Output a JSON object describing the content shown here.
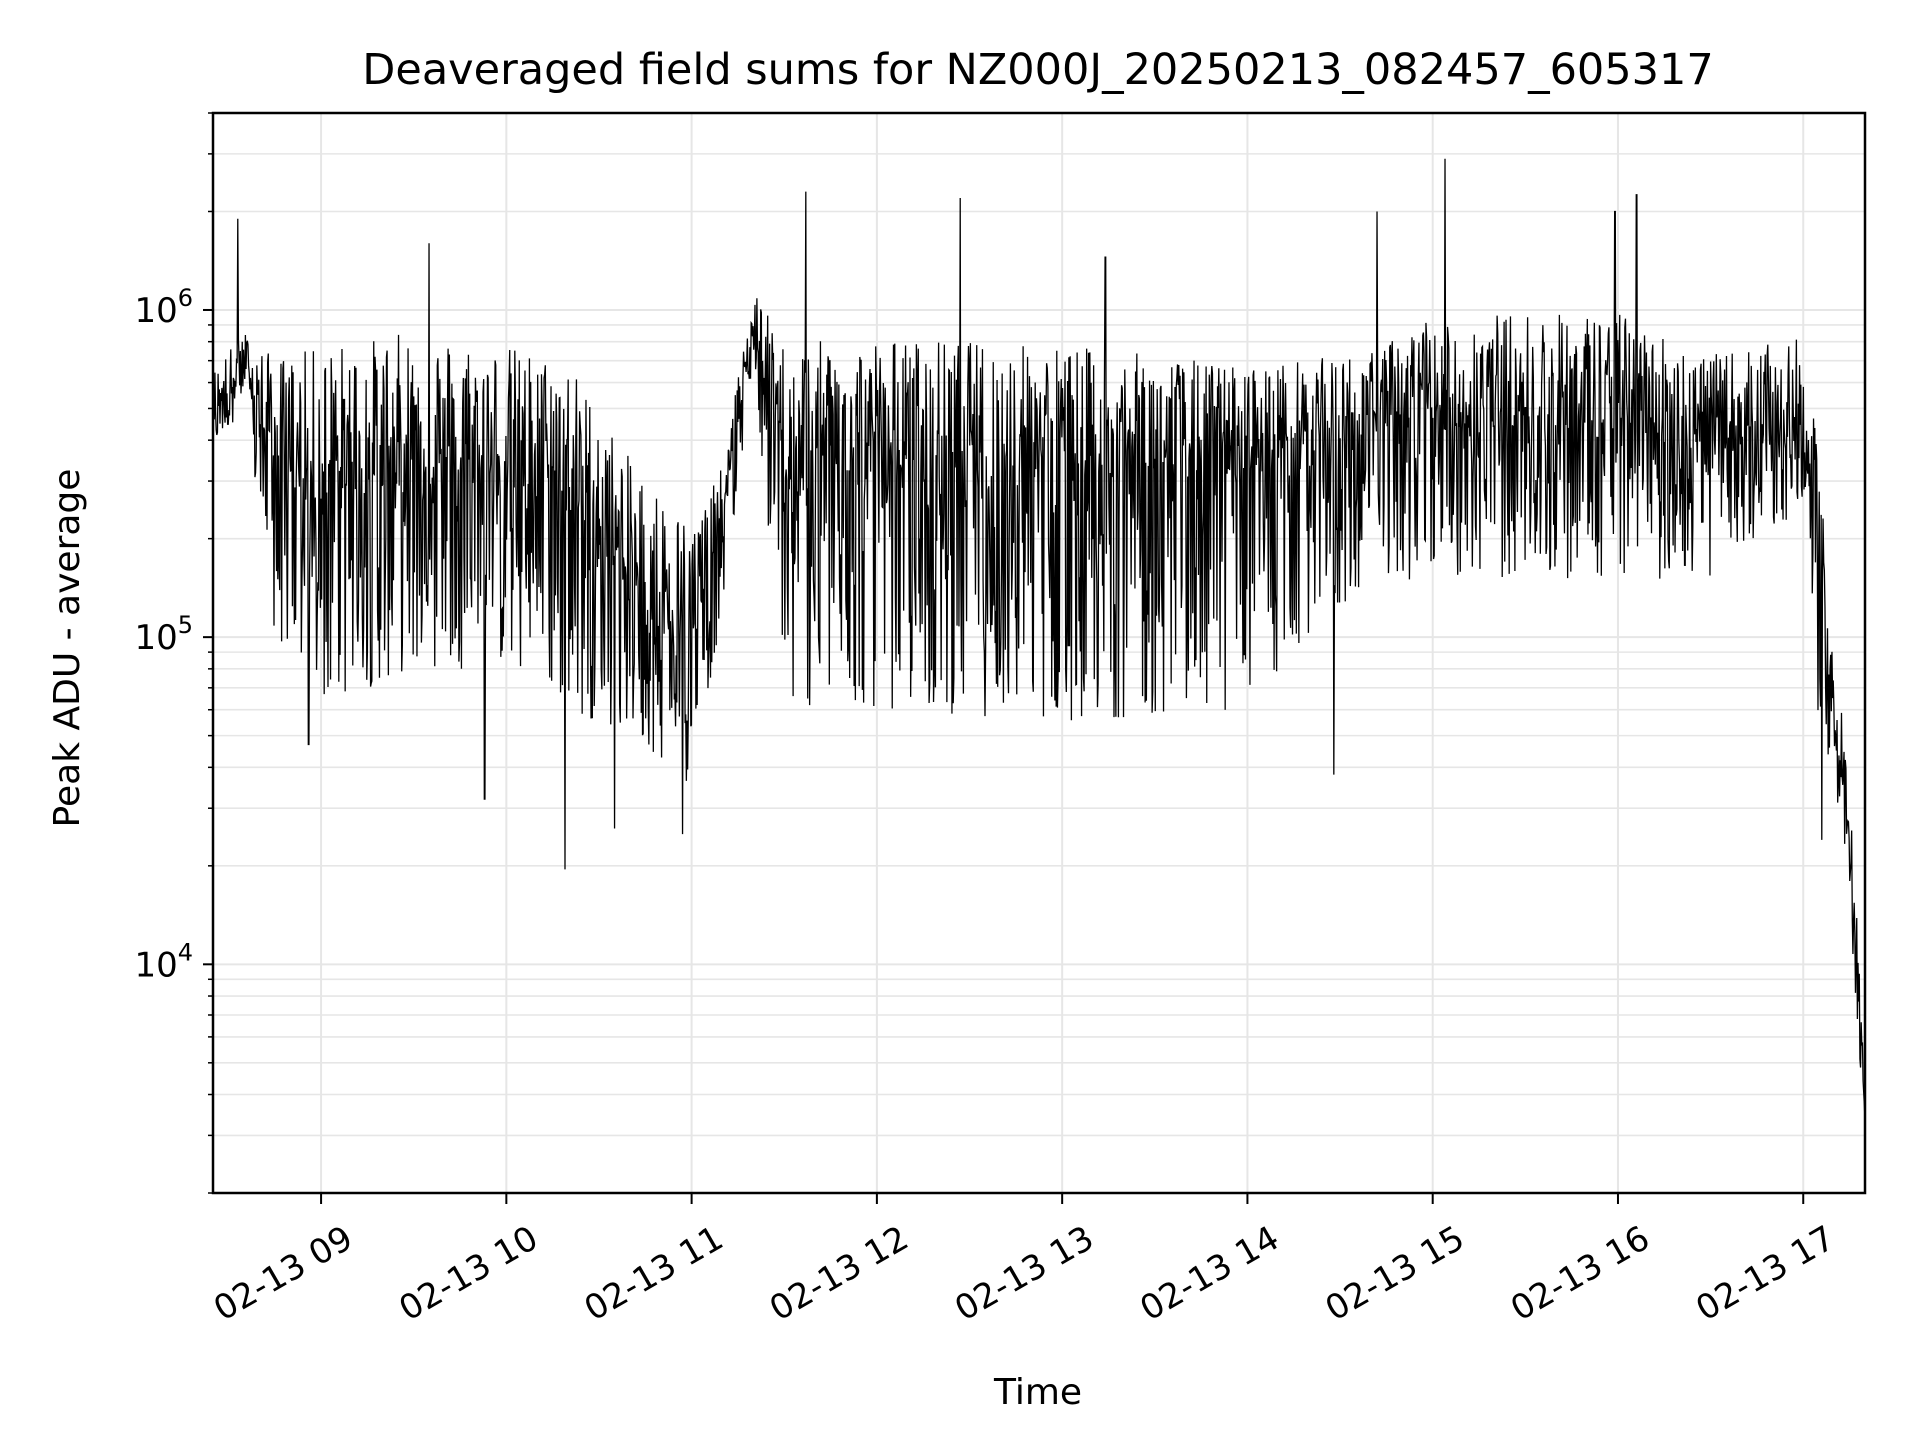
{
  "chart_data": {
    "type": "line",
    "title": "Deaveraged field sums for NZ000J_20250213_082457_605317",
    "xlabel": "Time",
    "ylabel": "Peak ADU - average",
    "yscale": "log",
    "ylim": [
      2000,
      4000000
    ],
    "xlim": [
      "02-13 08:25",
      "02-13 17:20"
    ],
    "grid": true,
    "line_color": "#000000",
    "grid_color": "#e6e6e6",
    "x_tick_labels": [
      "02-13 09",
      "02-13 10",
      "02-13 11",
      "02-13 12",
      "02-13 13",
      "02-13 14",
      "02-13 15",
      "02-13 16",
      "02-13 17"
    ],
    "x_tick_times": [
      "02-13 09:00",
      "02-13 10:00",
      "02-13 11:00",
      "02-13 12:00",
      "02-13 13:00",
      "02-13 14:00",
      "02-13 15:00",
      "02-13 16:00",
      "02-13 17:00"
    ],
    "y_tick_labels": [
      {
        "value": 1000000,
        "base": "10",
        "exp": "6"
      },
      {
        "value": 100000,
        "base": "10",
        "exp": "5"
      },
      {
        "value": 10000,
        "base": "10",
        "exp": "4"
      }
    ],
    "series": [
      {
        "envelope": [
          {
            "t": "02-13 08:25",
            "center": 500000,
            "upper": 700000,
            "lower": 380000
          },
          {
            "t": "02-13 08:35",
            "center": 700000,
            "upper": 900000,
            "lower": 500000
          },
          {
            "t": "02-13 08:45",
            "center": 400000,
            "upper": 800000,
            "lower": 100000
          },
          {
            "t": "02-13 09:00",
            "center": 350000,
            "upper": 900000,
            "lower": 60000
          },
          {
            "t": "02-13 09:30",
            "center": 400000,
            "upper": 1000000,
            "lower": 80000
          },
          {
            "t": "02-13 10:00",
            "center": 380000,
            "upper": 900000,
            "lower": 80000
          },
          {
            "t": "02-13 10:20",
            "center": 350000,
            "upper": 800000,
            "lower": 60000
          },
          {
            "t": "02-13 10:40",
            "center": 180000,
            "upper": 400000,
            "lower": 50000
          },
          {
            "t": "02-13 11:00",
            "center": 120000,
            "upper": 250000,
            "lower": 35000
          },
          {
            "t": "02-13 11:10",
            "center": 250000,
            "upper": 350000,
            "lower": 120000
          },
          {
            "t": "02-13 11:20",
            "center": 950000,
            "upper": 1200000,
            "lower": 700000
          },
          {
            "t": "02-13 11:30",
            "center": 400000,
            "upper": 900000,
            "lower": 60000
          },
          {
            "t": "02-13 12:00",
            "center": 400000,
            "upper": 950000,
            "lower": 60000
          },
          {
            "t": "02-13 13:00",
            "center": 380000,
            "upper": 900000,
            "lower": 55000
          },
          {
            "t": "02-13 14:00",
            "center": 400000,
            "upper": 750000,
            "lower": 60000
          },
          {
            "t": "02-13 14:40",
            "center": 500000,
            "upper": 800000,
            "lower": 150000
          },
          {
            "t": "02-13 15:00",
            "center": 550000,
            "upper": 1100000,
            "lower": 150000
          },
          {
            "t": "02-13 16:00",
            "center": 550000,
            "upper": 1100000,
            "lower": 150000
          },
          {
            "t": "02-13 16:30",
            "center": 450000,
            "upper": 800000,
            "lower": 150000
          },
          {
            "t": "02-13 17:00",
            "center": 500000,
            "upper": 900000,
            "lower": 250000
          },
          {
            "t": "02-13 17:05",
            "center": 200000,
            "upper": 400000,
            "lower": 50000
          },
          {
            "t": "02-13 17:10",
            "center": 60000,
            "upper": 100000,
            "lower": 35000
          },
          {
            "t": "02-13 17:15",
            "center": 25000,
            "upper": 40000,
            "lower": 15000
          },
          {
            "t": "02-13 17:20",
            "center": 3500,
            "upper": 5000,
            "lower": 3000
          }
        ],
        "spikes": [
          {
            "t": "02-13 08:33",
            "value": 1900000
          },
          {
            "t": "02-13 08:56",
            "value": 47000
          },
          {
            "t": "02-13 09:35",
            "value": 1600000
          },
          {
            "t": "02-13 09:53",
            "value": 32000
          },
          {
            "t": "02-13 10:19",
            "value": 19500
          },
          {
            "t": "02-13 10:35",
            "value": 26000
          },
          {
            "t": "02-13 10:57",
            "value": 25000
          },
          {
            "t": "02-13 11:37",
            "value": 2300000
          },
          {
            "t": "02-13 12:27",
            "value": 2200000
          },
          {
            "t": "02-13 13:14",
            "value": 1450000
          },
          {
            "t": "02-13 14:28",
            "value": 38000
          },
          {
            "t": "02-13 14:42",
            "value": 2000000
          },
          {
            "t": "02-13 15:04",
            "value": 2900000
          },
          {
            "t": "02-13 15:59",
            "value": 2000000
          },
          {
            "t": "02-13 16:06",
            "value": 2250000
          },
          {
            "t": "02-13 17:06",
            "value": 24000
          }
        ]
      }
    ]
  }
}
